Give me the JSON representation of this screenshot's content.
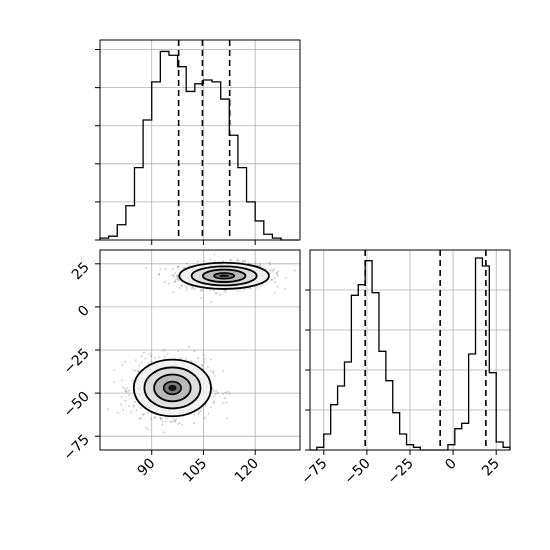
{
  "chart_data": [
    {
      "type": "histogram",
      "panel": "top-left",
      "variable": "x",
      "bins_x": [
        75.0,
        77.5,
        80.0,
        82.5,
        85.0,
        87.5,
        90.0,
        92.5,
        95.0,
        97.5,
        100.0,
        102.5,
        105.0,
        107.5,
        110.0,
        112.5,
        115.0,
        117.5,
        120.0,
        122.5,
        125.0,
        127.5,
        130.0,
        132.5
      ],
      "counts": [
        1,
        2,
        8,
        18,
        38,
        63,
        83,
        99,
        97,
        91,
        78,
        82,
        84,
        83,
        74,
        55,
        38,
        20,
        10,
        3,
        1,
        0,
        0
      ],
      "xlim": [
        75,
        133
      ],
      "ylim": [
        0,
        105
      ],
      "quantile_lines": [
        97.8,
        104.7,
        112.6
      ],
      "grid": true,
      "yticklabels_visible": false
    },
    {
      "type": "contour",
      "panel": "bottom-left",
      "x_variable": "x",
      "y_variable": "y",
      "xlim": [
        75,
        133
      ],
      "ylim": [
        -83,
        33
      ],
      "xticks": [
        "90",
        "105",
        "120"
      ],
      "xtick_values": [
        90,
        105,
        120
      ],
      "yticks": [
        "25",
        "0",
        "−25",
        "−50",
        "−75"
      ],
      "ytick_values": [
        25,
        0,
        -25,
        -50,
        -75
      ],
      "clusters": [
        {
          "center": [
            111,
            18
          ],
          "sigma": [
            6.5,
            3.8
          ]
        },
        {
          "center": [
            96,
            -47
          ],
          "sigma": [
            5.6,
            8.2
          ]
        }
      ],
      "grid": true
    },
    {
      "type": "histogram",
      "panel": "bottom-right",
      "variable": "y",
      "bins_x": [
        -83,
        -79,
        -75,
        -71,
        -67,
        -63,
        -59,
        -55,
        -51,
        -47,
        -43,
        -39,
        -35,
        -31,
        -27,
        -23,
        -19,
        -15,
        -11,
        -7,
        -3,
        1,
        5,
        9,
        13,
        17,
        21,
        25,
        29,
        33
      ],
      "counts": [
        0,
        1,
        6,
        17,
        24,
        33,
        58,
        62,
        71,
        59,
        37,
        26,
        14,
        6,
        2,
        1,
        0,
        0,
        0,
        0,
        2,
        8,
        10,
        36,
        72,
        69,
        29,
        3,
        1
      ],
      "xlim": [
        -83,
        33
      ],
      "ylim": [
        0,
        75
      ],
      "xticks": [
        "−75",
        "−50",
        "−25",
        "0",
        "25"
      ],
      "xtick_values": [
        -75,
        -50,
        -25,
        0,
        25
      ],
      "quantile_lines": [
        -51.0,
        -7.5,
        19.0
      ],
      "grid": true,
      "yticklabels_visible": false
    }
  ]
}
